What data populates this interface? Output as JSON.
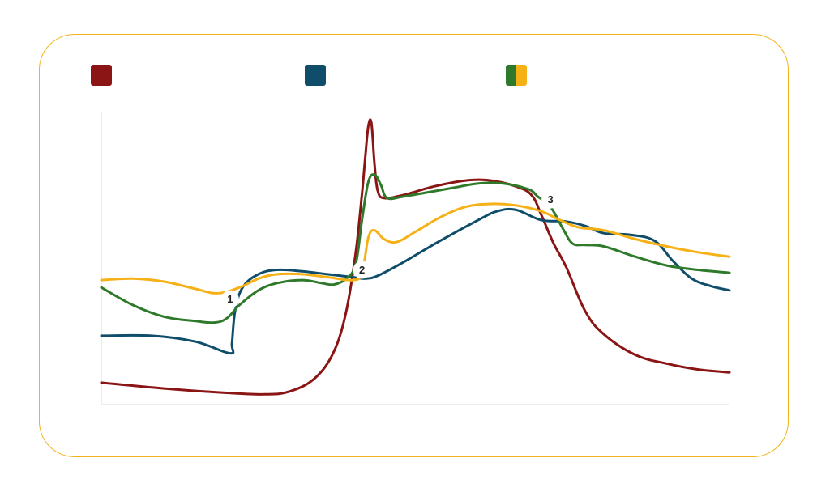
{
  "colors": {
    "frame": "#f2b31a",
    "axis": "#ececec",
    "marker_bg": "#ffffff"
  },
  "chart_data": {
    "type": "line",
    "title": "",
    "xlabel": "",
    "ylabel": "",
    "xlim": [
      0,
      100
    ],
    "ylim": [
      0,
      100
    ],
    "grid": false,
    "legend_position": "top",
    "legend": [
      {
        "color": "#8b1414",
        "label": ""
      },
      {
        "color": "#0f4d6b",
        "label": ""
      },
      {
        "colors": [
          "#2e7a2a",
          "#f5b116"
        ],
        "label": ""
      }
    ],
    "markers": [
      {
        "text": "1",
        "x": 20.5,
        "y": 36
      },
      {
        "text": "2",
        "x": 41.5,
        "y": 46
      },
      {
        "text": "3",
        "x": 71.5,
        "y": 70
      }
    ],
    "series": [
      {
        "color": "#8b1414",
        "points": [
          [
            0,
            7.5
          ],
          [
            10,
            5.5
          ],
          [
            20,
            4
          ],
          [
            26,
            3.5
          ],
          [
            30,
            4.5
          ],
          [
            34,
            9
          ],
          [
            37,
            18
          ],
          [
            39,
            32
          ],
          [
            40.5,
            52
          ],
          [
            41.5,
            72
          ],
          [
            42,
            84
          ],
          [
            42.5,
            95
          ],
          [
            43,
            96
          ],
          [
            43.5,
            82
          ],
          [
            44,
            73
          ],
          [
            45,
            70.5
          ],
          [
            48,
            71.5
          ],
          [
            53,
            74.5
          ],
          [
            58,
            76.5
          ],
          [
            62,
            76.5
          ],
          [
            66,
            74.5
          ],
          [
            68.5,
            71.5
          ],
          [
            70,
            65
          ],
          [
            72,
            55
          ],
          [
            74,
            47
          ],
          [
            77,
            32
          ],
          [
            80,
            24
          ],
          [
            85,
            17
          ],
          [
            90,
            14
          ],
          [
            95,
            12
          ],
          [
            100,
            11
          ]
        ]
      },
      {
        "color": "#0f4d6b",
        "points": [
          [
            0,
            23.5
          ],
          [
            8,
            23.5
          ],
          [
            15,
            21.5
          ],
          [
            20.5,
            17.5
          ],
          [
            20.8,
            21
          ],
          [
            21.3,
            32
          ],
          [
            22.5,
            40
          ],
          [
            25,
            44.5
          ],
          [
            28,
            46
          ],
          [
            32,
            45.5
          ],
          [
            36,
            44.5
          ],
          [
            40,
            43.5
          ],
          [
            42,
            43
          ],
          [
            44,
            44
          ],
          [
            48,
            48.5
          ],
          [
            54,
            56
          ],
          [
            60,
            63
          ],
          [
            63,
            66
          ],
          [
            66,
            66.5
          ],
          [
            70,
            63
          ],
          [
            74,
            62.5
          ],
          [
            77,
            61
          ],
          [
            80,
            58.5
          ],
          [
            84,
            58
          ],
          [
            88,
            56
          ],
          [
            91,
            49
          ],
          [
            94,
            43
          ],
          [
            97,
            40.5
          ],
          [
            100,
            39
          ]
        ]
      },
      {
        "color": "#2e7a2a",
        "points": [
          [
            0,
            40
          ],
          [
            5,
            34
          ],
          [
            10,
            30
          ],
          [
            15,
            28.5
          ],
          [
            18,
            28
          ],
          [
            20,
            29.5
          ],
          [
            22,
            34
          ],
          [
            25,
            39
          ],
          [
            28,
            41.5
          ],
          [
            32,
            42.5
          ],
          [
            35,
            41.5
          ],
          [
            37,
            41
          ],
          [
            39,
            43
          ],
          [
            40.5,
            48
          ],
          [
            41.5,
            63
          ],
          [
            42.5,
            76
          ],
          [
            43.5,
            78.5
          ],
          [
            44.5,
            75
          ],
          [
            45.5,
            70.5
          ],
          [
            48,
            71
          ],
          [
            52,
            72.5
          ],
          [
            56,
            74
          ],
          [
            60,
            75.5
          ],
          [
            64,
            75.5
          ],
          [
            68,
            73.5
          ],
          [
            69.5,
            71
          ],
          [
            71.5,
            67.5
          ],
          [
            73.5,
            60
          ],
          [
            75,
            55
          ],
          [
            77,
            54.5
          ],
          [
            80,
            54
          ],
          [
            85,
            50.5
          ],
          [
            90,
            47.5
          ],
          [
            95,
            46
          ],
          [
            100,
            45
          ]
        ]
      },
      {
        "color": "#f5b116",
        "points": [
          [
            0,
            42.5
          ],
          [
            5,
            43
          ],
          [
            10,
            42
          ],
          [
            15,
            39.5
          ],
          [
            18.5,
            38
          ],
          [
            22,
            40
          ],
          [
            25,
            43
          ],
          [
            28,
            44.5
          ],
          [
            32,
            44.5
          ],
          [
            36,
            43.5
          ],
          [
            40,
            42.5
          ],
          [
            41.5,
            45
          ],
          [
            42.5,
            57
          ],
          [
            43.5,
            59.5
          ],
          [
            45,
            56.5
          ],
          [
            47,
            55.5
          ],
          [
            50,
            59
          ],
          [
            54,
            64
          ],
          [
            58,
            67.5
          ],
          [
            62,
            68.5
          ],
          [
            66,
            68
          ],
          [
            70,
            66
          ],
          [
            73,
            63
          ],
          [
            76,
            60.5
          ],
          [
            80,
            59.5
          ],
          [
            85,
            56.5
          ],
          [
            90,
            54
          ],
          [
            95,
            52
          ],
          [
            100,
            50.5
          ]
        ]
      }
    ]
  }
}
